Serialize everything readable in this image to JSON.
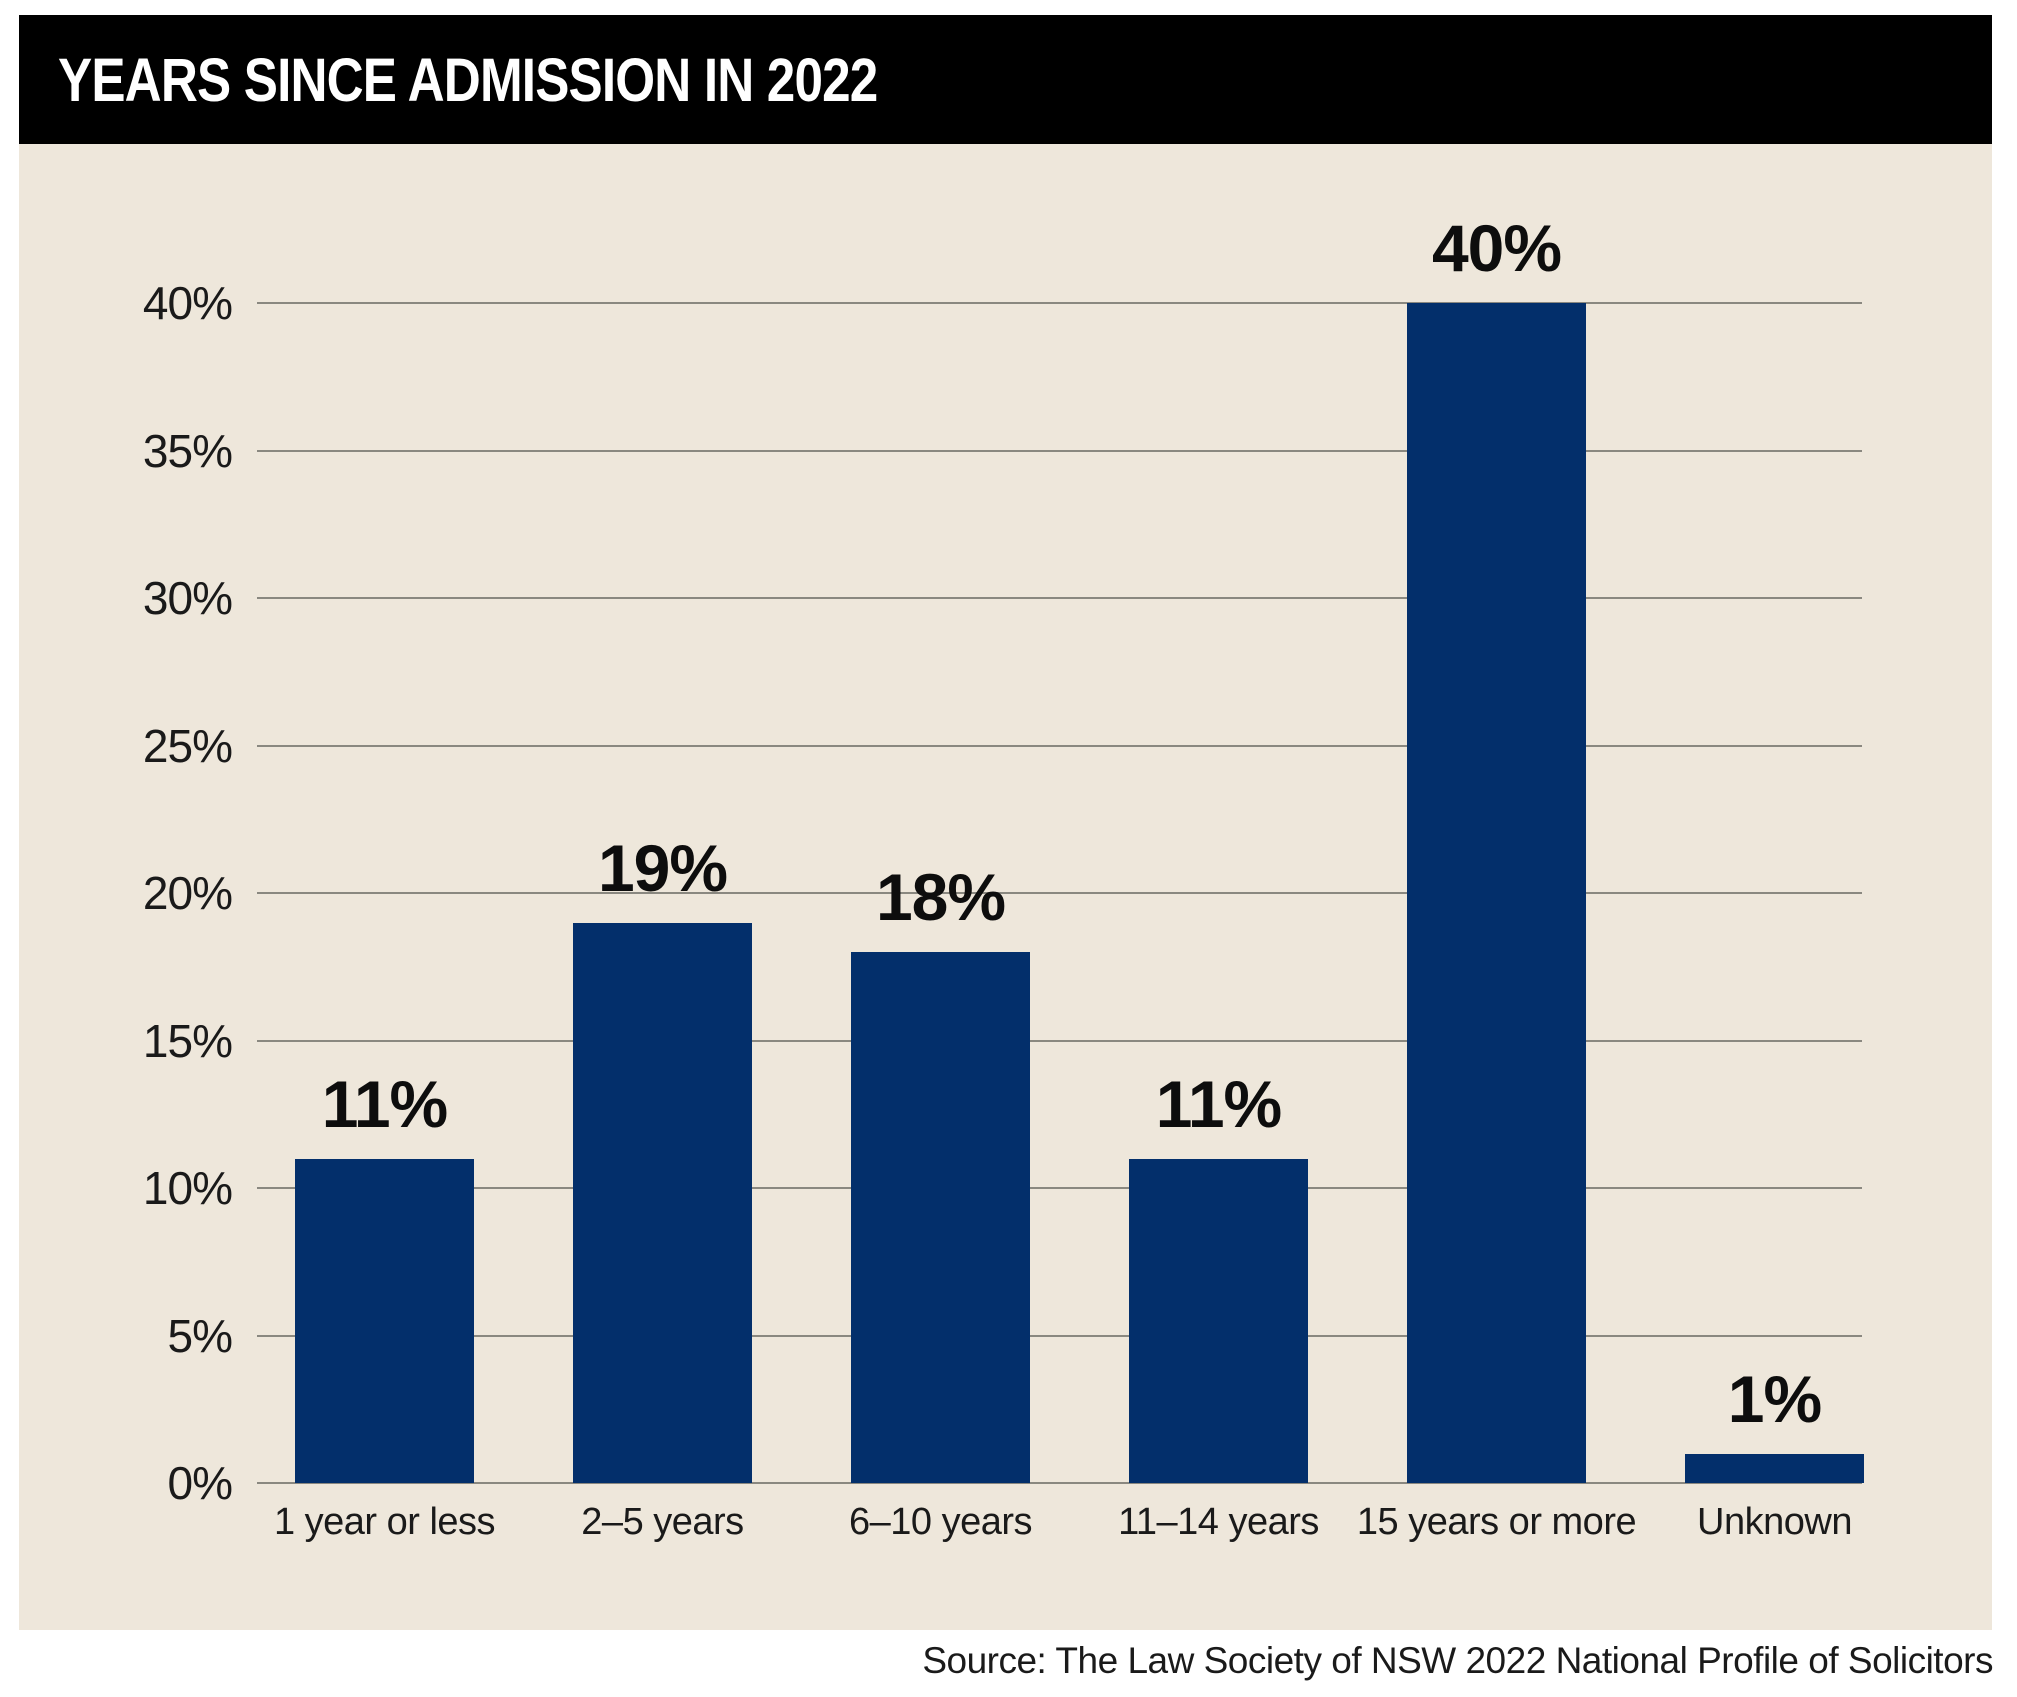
{
  "header": {
    "title": "YEARS SINCE ADMISSION IN 2022"
  },
  "source": "Source: The Law Society of NSW 2022 National Profile of Solicitors",
  "chart_data": {
    "type": "bar",
    "title": "YEARS SINCE ADMISSION IN 2022",
    "categories": [
      "1 year or less",
      "2–5 years",
      "6–10 years",
      "11–14 years",
      "15 years or more",
      "Unknown"
    ],
    "values": [
      11,
      19,
      18,
      11,
      40,
      1
    ],
    "value_labels": [
      "11%",
      "19%",
      "18%",
      "11%",
      "40%",
      "1%"
    ],
    "xlabel": "",
    "ylabel": "",
    "ylim": [
      0,
      40
    ],
    "y_tick_step": 5,
    "y_tick_labels": [
      "0%",
      "5%",
      "10%",
      "15%",
      "20%",
      "25%",
      "30%",
      "35%",
      "40%"
    ],
    "grid": true,
    "legend": "none",
    "colors": {
      "bar": "#032F6B",
      "panel_bg": "#EEE7DB",
      "header_bg": "#000000",
      "header_text": "#FFFFFF",
      "gridline": "#8A8880",
      "text": "#1A1A1A"
    }
  }
}
